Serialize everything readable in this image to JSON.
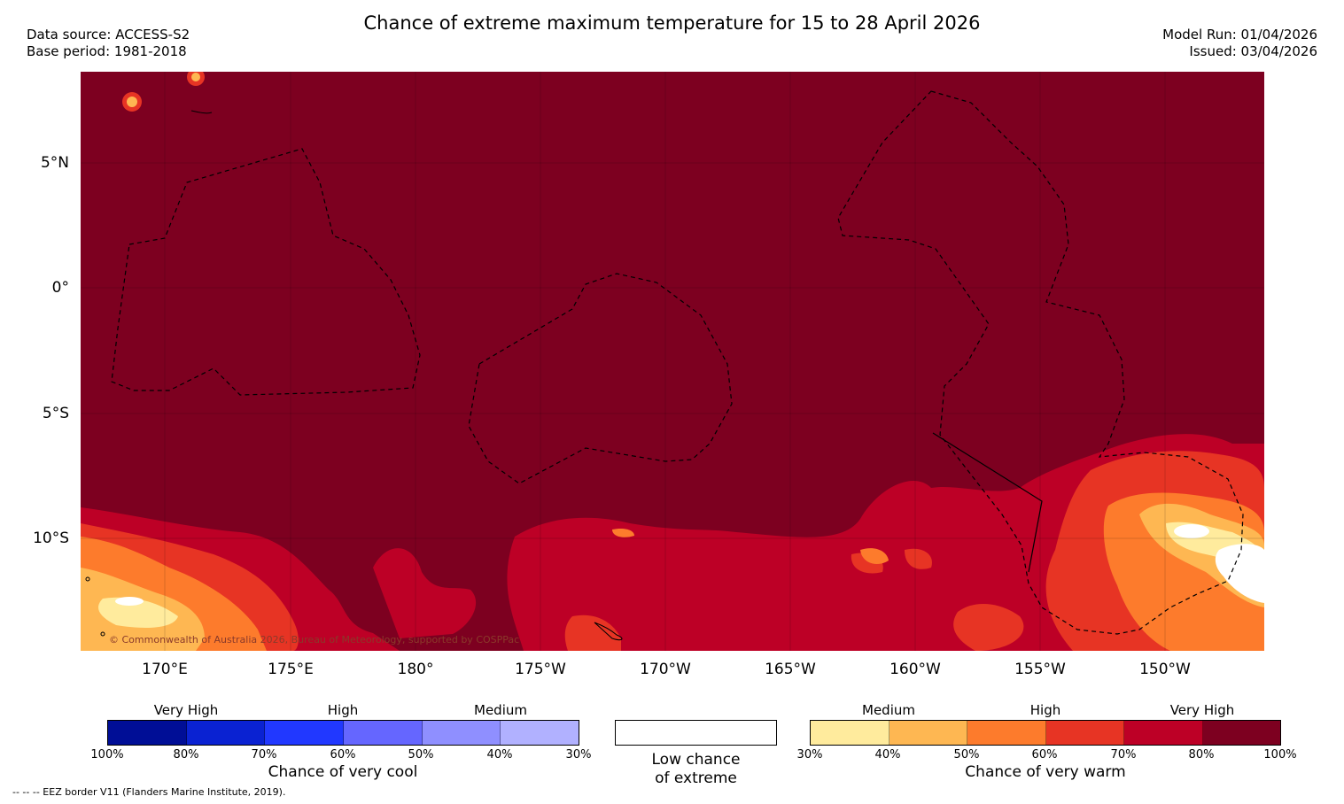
{
  "header": {
    "title": "Chance of extreme maximum temperature for 15 to 28 April 2026",
    "data_source": "Data source: ACCESS-S2",
    "base_period": "Base period: 1981-2018",
    "model_run": "Model Run: 01/04/2026",
    "issued": "Issued: 03/04/2026"
  },
  "map": {
    "lat_labels": [
      "5°N",
      "0°",
      "5°S",
      "10°S"
    ],
    "lon_labels": [
      "170°E",
      "175°E",
      "180°",
      "175°W",
      "170°W",
      "165°W",
      "160°W",
      "155°W",
      "150°W"
    ],
    "copyright": "© Commonwealth of Australia 2026, Bureau of Meteorology, supported by COSPPac",
    "colors": {
      "very_high_warm": "#7d0020",
      "high_warm": "#bd0026",
      "mid_warm": "#e73424",
      "low_warm": "#fd7b2c",
      "medium_warm": "#feb752",
      "faint_warm": "#ffeb9d"
    }
  },
  "legend": {
    "cool": {
      "categories": [
        "Very High",
        "High",
        "Medium"
      ],
      "ticks": [
        "100%",
        "80%",
        "70%",
        "60%",
        "50%",
        "40%",
        "30%"
      ],
      "colors": [
        "#000e96",
        "#0a22d2",
        "#2138ff",
        "#6566ff",
        "#8f8fff",
        "#b1b1ff"
      ],
      "title": "Chance of very cool"
    },
    "neutral": {
      "line1": "Low chance",
      "line2": "of extreme"
    },
    "warm": {
      "categories": [
        "Medium",
        "High",
        "Very High"
      ],
      "ticks": [
        "30%",
        "40%",
        "50%",
        "60%",
        "70%",
        "80%",
        "100%"
      ],
      "colors": [
        "#ffeb9d",
        "#feb752",
        "#fd7b2c",
        "#e73424",
        "#bd0026",
        "#7d0020"
      ],
      "title": "Chance of very warm"
    }
  },
  "footnote": "-- -- -- EEZ border V11 (Flanders Marine Institute, 2019)."
}
